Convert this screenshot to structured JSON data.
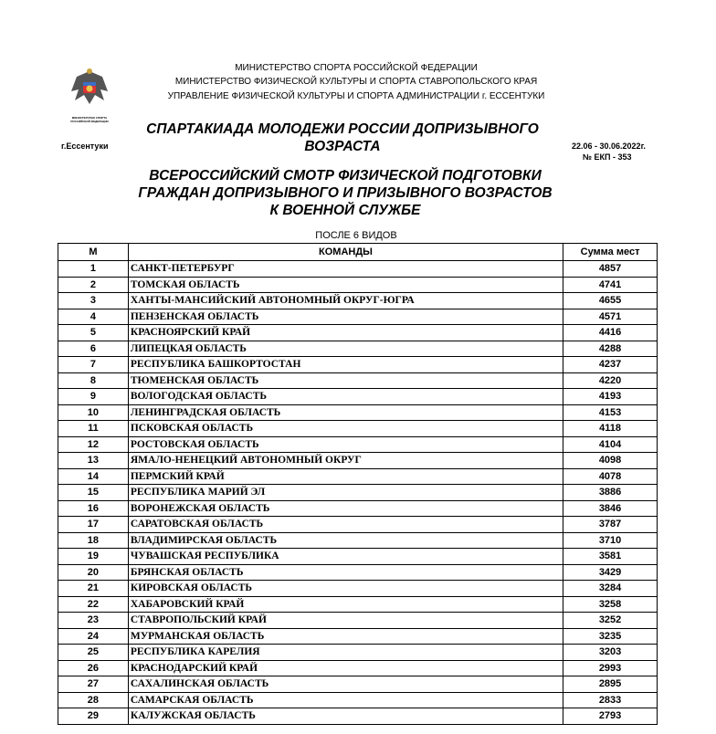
{
  "logo": {
    "caption": "МИНИСТЕРСТВО СПОРТА РОССИЙСКОЙ ФЕДЕРАЦИИ"
  },
  "header": {
    "org_lines": [
      "МИНИСТЕРСТВО СПОРТА РОССИЙСКОЙ ФЕДЕРАЦИИ",
      "МИНИСТЕРСТВО ФИЗИЧЕСКОЙ КУЛЬТУРЫ И СПОРТА СТАВРОПОЛЬСКОГО КРАЯ",
      "УПРАВЛЕНИЕ ФИЗИЧЕСКОЙ КУЛЬТУРЫ И СПОРТА АДМИНИСТРАЦИИ г. ЕССЕНТУКИ"
    ],
    "title": "СПАРТАКИАДА МОЛОДЕЖИ РОССИИ ДОПРИЗЫВНОГО ВОЗРАСТА",
    "city": "г.Ессентуки",
    "dates": "22.06 - 30.06.2022г.",
    "ekp": "№ ЕКП - 353",
    "subtitle": "ВСЕРОССИЙСКИЙ СМОТР ФИЗИЧЕСКОЙ ПОДГОТОВКИ ГРАЖДАН ДОПРИЗЫВНОГО И ПРИЗЫВНОГО ВОЗРАСТОВ К ВОЕННОЙ СЛУЖБЕ",
    "stage": "ПОСЛЕ 6 ВИДОВ"
  },
  "table": {
    "columns": [
      "М",
      "КОМАНДЫ",
      "Сумма мест"
    ],
    "rows": [
      [
        "1",
        "САНКТ-ПЕТЕРБУРГ",
        "4857"
      ],
      [
        "2",
        "ТОМСКАЯ ОБЛАСТЬ",
        "4741"
      ],
      [
        "3",
        "ХАНТЫ-МАНСИЙСКИЙ АВТОНОМНЫЙ ОКРУГ-ЮГРА",
        "4655"
      ],
      [
        "4",
        "ПЕНЗЕНСКАЯ ОБЛАСТЬ",
        "4571"
      ],
      [
        "5",
        "КРАСНОЯРСКИЙ КРАЙ",
        "4416"
      ],
      [
        "6",
        "ЛИПЕЦКАЯ ОБЛАСТЬ",
        "4288"
      ],
      [
        "7",
        "РЕСПУБЛИКА БАШКОРТОСТАН",
        "4237"
      ],
      [
        "8",
        "ТЮМЕНСКАЯ ОБЛАСТЬ",
        "4220"
      ],
      [
        "9",
        "ВОЛОГОДСКАЯ ОБЛАСТЬ",
        "4193"
      ],
      [
        "10",
        "ЛЕНИНГРАДСКАЯ ОБЛАСТЬ",
        "4153"
      ],
      [
        "11",
        "ПСКОВСКАЯ ОБЛАСТЬ",
        "4118"
      ],
      [
        "12",
        "РОСТОВСКАЯ ОБЛАСТЬ",
        "4104"
      ],
      [
        "13",
        "ЯМАЛО-НЕНЕЦКИЙ АВТОНОМНЫЙ ОКРУГ",
        "4098"
      ],
      [
        "14",
        "ПЕРМСКИЙ КРАЙ",
        "4078"
      ],
      [
        "15",
        "РЕСПУБЛИКА МАРИЙ ЭЛ",
        "3886"
      ],
      [
        "16",
        "ВОРОНЕЖСКАЯ ОБЛАСТЬ",
        "3846"
      ],
      [
        "17",
        "САРАТОВСКАЯ ОБЛАСТЬ",
        "3787"
      ],
      [
        "18",
        "ВЛАДИМИРСКАЯ ОБЛАСТЬ",
        "3710"
      ],
      [
        "19",
        "ЧУВАШСКАЯ РЕСПУБЛИКА",
        "3581"
      ],
      [
        "20",
        "БРЯНСКАЯ ОБЛАСТЬ",
        "3429"
      ],
      [
        "21",
        "КИРОВСКАЯ ОБЛАСТЬ",
        "3284"
      ],
      [
        "22",
        "ХАБАРОВСКИЙ КРАЙ",
        "3258"
      ],
      [
        "23",
        "СТАВРОПОЛЬСКИЙ КРАЙ",
        "3252"
      ],
      [
        "24",
        "МУРМАНСКАЯ ОБЛАСТЬ",
        "3235"
      ],
      [
        "25",
        "РЕСПУБЛИКА КАРЕЛИЯ",
        "3203"
      ],
      [
        "26",
        "КРАСНОДАРСКИЙ КРАЙ",
        "2993"
      ],
      [
        "27",
        "САХАЛИНСКАЯ ОБЛАСТЬ",
        "2895"
      ],
      [
        "28",
        "САМАРСКАЯ ОБЛАСТЬ",
        "2833"
      ],
      [
        "29",
        "КАЛУЖСКАЯ ОБЛАСТЬ",
        "2793"
      ]
    ]
  }
}
